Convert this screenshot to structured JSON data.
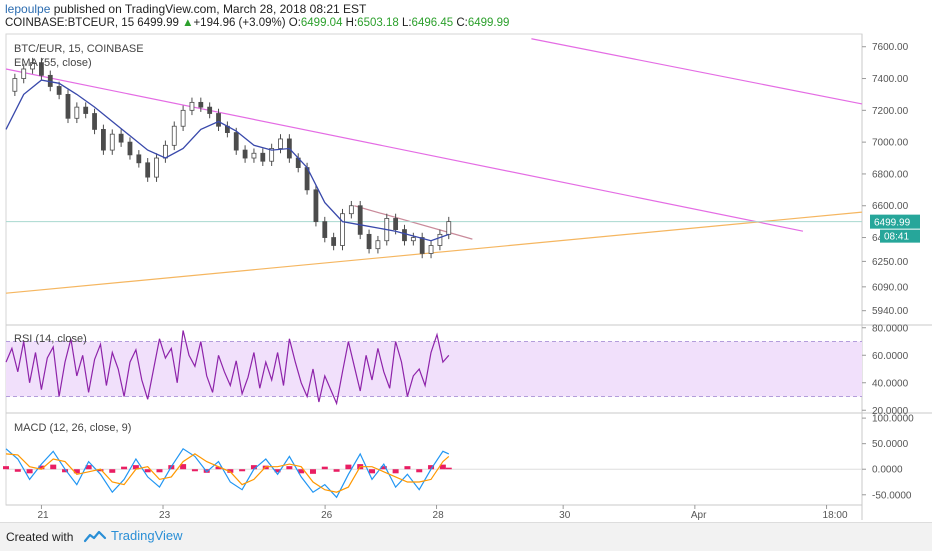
{
  "header": {
    "author": "lepoulpe",
    "published_text": "published on TradingView.com, March 28, 2018 08:21 EST",
    "symbol": "COINBASE:BTCEUR, 15",
    "last": "6499.99",
    "change_arrow": "▲",
    "change": "+194.96 (+3.09%)",
    "o_label": "O:",
    "o_value": "6499.04",
    "h_label": "H:",
    "h_value": "6503.18",
    "l_label": "L:",
    "l_value": "6496.45",
    "c_label": "C:",
    "c_value": "6499.99"
  },
  "footer": {
    "created_with": "Created with",
    "logo_text": "TradingView"
  },
  "colors": {
    "ema": "#3949ab",
    "rsi": "#8e24aa",
    "rsi_band": "#f1e0fb",
    "macd_line": "#2196f3",
    "signal_line": "#ff9800",
    "hist": "#e91e63",
    "magenta_line": "#e46ce4",
    "orange_line": "#f5b660",
    "rose_line": "#c98a9a",
    "price_green": "#26a69a",
    "candle_up": "#4c4c4c",
    "candle_down": "#4c4c4c"
  },
  "chart_data": [
    {
      "type": "line",
      "title": "BTC/EUR, 15, COINBASE",
      "subtitle": "EMA (55, close)",
      "x_ticks": [
        "21",
        "23",
        "26",
        "28",
        "30",
        "Apr",
        "18:00"
      ],
      "y_ticks": [
        "5940.00",
        "6090.00",
        "6250.00",
        "6400.00",
        "6600.00",
        "6800.00",
        "7000.00",
        "7200.00",
        "7400.00",
        "7600.00"
      ],
      "ylim": [
        5850,
        7680
      ],
      "xlim": [
        0,
        14.5
      ],
      "price_label": "6499.99",
      "countdown_label": "08:41",
      "close_series": [
        [
          0.0,
          7320
        ],
        [
          0.15,
          7400
        ],
        [
          0.3,
          7460
        ],
        [
          0.45,
          7500
        ],
        [
          0.6,
          7420
        ],
        [
          0.75,
          7350
        ],
        [
          0.9,
          7300
        ],
        [
          1.05,
          7150
        ],
        [
          1.2,
          7220
        ],
        [
          1.35,
          7180
        ],
        [
          1.5,
          7080
        ],
        [
          1.65,
          6950
        ],
        [
          1.8,
          7050
        ],
        [
          1.95,
          7000
        ],
        [
          2.1,
          6920
        ],
        [
          2.25,
          6870
        ],
        [
          2.4,
          6780
        ],
        [
          2.55,
          6900
        ],
        [
          2.7,
          6980
        ],
        [
          2.85,
          7100
        ],
        [
          3.0,
          7200
        ],
        [
          3.15,
          7250
        ],
        [
          3.3,
          7220
        ],
        [
          3.45,
          7180
        ],
        [
          3.6,
          7100
        ],
        [
          3.75,
          7060
        ],
        [
          3.9,
          6950
        ],
        [
          4.05,
          6900
        ],
        [
          4.2,
          6930
        ],
        [
          4.35,
          6880
        ],
        [
          4.5,
          6960
        ],
        [
          4.65,
          7020
        ],
        [
          4.8,
          6900
        ],
        [
          4.95,
          6840
        ],
        [
          5.1,
          6700
        ],
        [
          5.25,
          6500
        ],
        [
          5.4,
          6400
        ],
        [
          5.55,
          6350
        ],
        [
          5.7,
          6550
        ],
        [
          5.85,
          6600
        ],
        [
          6.0,
          6420
        ],
        [
          6.15,
          6330
        ],
        [
          6.3,
          6380
        ],
        [
          6.45,
          6520
        ],
        [
          6.6,
          6450
        ],
        [
          6.75,
          6380
        ],
        [
          6.9,
          6400
        ],
        [
          7.05,
          6300
        ],
        [
          7.2,
          6350
        ],
        [
          7.35,
          6420
        ],
        [
          7.5,
          6500
        ]
      ],
      "ema_series": [
        [
          0.0,
          7080
        ],
        [
          0.3,
          7300
        ],
        [
          0.6,
          7390
        ],
        [
          0.9,
          7370
        ],
        [
          1.2,
          7300
        ],
        [
          1.5,
          7220
        ],
        [
          1.8,
          7130
        ],
        [
          2.1,
          7040
        ],
        [
          2.4,
          6950
        ],
        [
          2.7,
          6900
        ],
        [
          3.0,
          6960
        ],
        [
          3.3,
          7080
        ],
        [
          3.6,
          7130
        ],
        [
          3.9,
          7070
        ],
        [
          4.2,
          6980
        ],
        [
          4.5,
          6950
        ],
        [
          4.8,
          6960
        ],
        [
          5.1,
          6840
        ],
        [
          5.4,
          6620
        ],
        [
          5.7,
          6500
        ],
        [
          6.0,
          6480
        ],
        [
          6.3,
          6460
        ],
        [
          6.6,
          6440
        ],
        [
          6.9,
          6410
        ],
        [
          7.2,
          6380
        ],
        [
          7.5,
          6420
        ]
      ],
      "trendlines": [
        {
          "name": "upper-channel",
          "from": [
            8.9,
            7650
          ],
          "to": [
            14.5,
            7240
          ]
        },
        {
          "name": "mid-resistance",
          "from": [
            0.0,
            7460
          ],
          "to": [
            13.5,
            6440
          ]
        },
        {
          "name": "short-resistance",
          "from": [
            5.9,
            6600
          ],
          "to": [
            7.9,
            6390
          ]
        },
        {
          "name": "support",
          "from": [
            0.0,
            6050
          ],
          "to": [
            14.5,
            6560
          ]
        }
      ]
    },
    {
      "type": "line",
      "title": "RSI (14, close)",
      "y_ticks": [
        "20.0000",
        "40.0000",
        "60.0000",
        "80.0000"
      ],
      "ylim": [
        18,
        82
      ],
      "band": [
        30,
        70
      ],
      "series": [
        {
          "values": [
            [
              0.0,
              55
            ],
            [
              0.1,
              65
            ],
            [
              0.2,
              48
            ],
            [
              0.3,
              70
            ],
            [
              0.4,
              40
            ],
            [
              0.5,
              62
            ],
            [
              0.6,
              35
            ],
            [
              0.7,
              58
            ],
            [
              0.8,
              66
            ],
            [
              0.9,
              30
            ],
            [
              1.0,
              55
            ],
            [
              1.1,
              72
            ],
            [
              1.2,
              45
            ],
            [
              1.3,
              60
            ],
            [
              1.4,
              33
            ],
            [
              1.5,
              57
            ],
            [
              1.6,
              68
            ],
            [
              1.7,
              38
            ],
            [
              1.8,
              62
            ],
            [
              1.9,
              50
            ],
            [
              2.0,
              30
            ],
            [
              2.1,
              55
            ],
            [
              2.2,
              64
            ],
            [
              2.3,
              42
            ],
            [
              2.4,
              28
            ],
            [
              2.5,
              50
            ],
            [
              2.6,
              72
            ],
            [
              2.7,
              58
            ],
            [
              2.8,
              65
            ],
            [
              2.9,
              40
            ],
            [
              3.0,
              78
            ],
            [
              3.1,
              60
            ],
            [
              3.2,
              52
            ],
            [
              3.3,
              70
            ],
            [
              3.4,
              45
            ],
            [
              3.5,
              33
            ],
            [
              3.6,
              60
            ],
            [
              3.7,
              48
            ],
            [
              3.8,
              38
            ],
            [
              3.9,
              56
            ],
            [
              4.0,
              32
            ],
            [
              4.1,
              44
            ],
            [
              4.2,
              62
            ],
            [
              4.3,
              36
            ],
            [
              4.4,
              55
            ],
            [
              4.5,
              42
            ],
            [
              4.6,
              62
            ],
            [
              4.7,
              38
            ],
            [
              4.8,
              72
            ],
            [
              4.9,
              55
            ],
            [
              5.0,
              40
            ],
            [
              5.1,
              30
            ],
            [
              5.2,
              50
            ],
            [
              5.3,
              26
            ],
            [
              5.4,
              45
            ],
            [
              5.5,
              35
            ],
            [
              5.6,
              25
            ],
            [
              5.7,
              48
            ],
            [
              5.8,
              70
            ],
            [
              5.9,
              52
            ],
            [
              6.0,
              34
            ],
            [
              6.1,
              60
            ],
            [
              6.2,
              42
            ],
            [
              6.3,
              65
            ],
            [
              6.4,
              48
            ],
            [
              6.5,
              36
            ],
            [
              6.6,
              70
            ],
            [
              6.7,
              55
            ],
            [
              6.8,
              30
            ],
            [
              6.9,
              45
            ],
            [
              7.0,
              50
            ],
            [
              7.1,
              38
            ],
            [
              7.2,
              62
            ],
            [
              7.3,
              75
            ],
            [
              7.4,
              55
            ],
            [
              7.5,
              60
            ]
          ]
        }
      ]
    },
    {
      "type": "line",
      "title": "MACD (12, 26, close, 9)",
      "y_ticks": [
        "-50.0000",
        "0.0000",
        "50.0000",
        "100.0000"
      ],
      "ylim": [
        -70,
        110
      ],
      "series": [
        {
          "values": [
            [
              0.0,
              40
            ],
            [
              0.2,
              20
            ],
            [
              0.4,
              -20
            ],
            [
              0.6,
              10
            ],
            [
              0.8,
              35
            ],
            [
              1.0,
              0
            ],
            [
              1.2,
              -30
            ],
            [
              1.4,
              15
            ],
            [
              1.6,
              -10
            ],
            [
              1.8,
              -45
            ],
            [
              2.0,
              -20
            ],
            [
              2.2,
              20
            ],
            [
              2.4,
              -15
            ],
            [
              2.6,
              -35
            ],
            [
              2.8,
              5
            ],
            [
              3.0,
              40
            ],
            [
              3.2,
              25
            ],
            [
              3.4,
              -5
            ],
            [
              3.6,
              15
            ],
            [
              3.8,
              -25
            ],
            [
              4.0,
              -40
            ],
            [
              4.2,
              0
            ],
            [
              4.4,
              20
            ],
            [
              4.6,
              -10
            ],
            [
              4.8,
              25
            ],
            [
              5.0,
              -15
            ],
            [
              5.2,
              -45
            ],
            [
              5.4,
              -30
            ],
            [
              5.6,
              -55
            ],
            [
              5.8,
              -10
            ],
            [
              6.0,
              30
            ],
            [
              6.2,
              -20
            ],
            [
              6.4,
              10
            ],
            [
              6.6,
              -35
            ],
            [
              6.8,
              -10
            ],
            [
              7.0,
              -40
            ],
            [
              7.2,
              0
            ],
            [
              7.4,
              35
            ],
            [
              7.5,
              30
            ]
          ]
        },
        {
          "values": [
            [
              0.0,
              30
            ],
            [
              0.2,
              28
            ],
            [
              0.4,
              5
            ],
            [
              0.6,
              0
            ],
            [
              0.8,
              20
            ],
            [
              1.0,
              15
            ],
            [
              1.2,
              -10
            ],
            [
              1.4,
              -5
            ],
            [
              1.6,
              0
            ],
            [
              1.8,
              -25
            ],
            [
              2.0,
              -30
            ],
            [
              2.2,
              0
            ],
            [
              2.4,
              5
            ],
            [
              2.6,
              -20
            ],
            [
              2.8,
              -15
            ],
            [
              3.0,
              15
            ],
            [
              3.2,
              30
            ],
            [
              3.4,
              15
            ],
            [
              3.6,
              5
            ],
            [
              3.8,
              -5
            ],
            [
              4.0,
              -30
            ],
            [
              4.2,
              -20
            ],
            [
              4.4,
              5
            ],
            [
              4.6,
              5
            ],
            [
              4.8,
              10
            ],
            [
              5.0,
              5
            ],
            [
              5.2,
              -25
            ],
            [
              5.4,
              -40
            ],
            [
              5.6,
              -45
            ],
            [
              5.8,
              -35
            ],
            [
              6.0,
              5
            ],
            [
              6.2,
              5
            ],
            [
              6.4,
              -5
            ],
            [
              6.6,
              -15
            ],
            [
              6.8,
              -25
            ],
            [
              7.0,
              -25
            ],
            [
              7.2,
              -20
            ],
            [
              7.4,
              15
            ],
            [
              7.5,
              25
            ]
          ]
        },
        {
          "values": [
            [
              0.0,
              6
            ],
            [
              0.2,
              -5
            ],
            [
              0.4,
              -8
            ],
            [
              0.6,
              7
            ],
            [
              0.8,
              9
            ],
            [
              1.0,
              -6
            ],
            [
              1.2,
              -8
            ],
            [
              1.4,
              8
            ],
            [
              1.6,
              -4
            ],
            [
              1.8,
              -7
            ],
            [
              2.0,
              5
            ],
            [
              2.2,
              8
            ],
            [
              2.4,
              -6
            ],
            [
              2.6,
              -6
            ],
            [
              2.8,
              8
            ],
            [
              3.0,
              10
            ],
            [
              3.2,
              -4
            ],
            [
              3.4,
              -7
            ],
            [
              3.6,
              5
            ],
            [
              3.8,
              -7
            ],
            [
              4.0,
              -4
            ],
            [
              4.2,
              8
            ],
            [
              4.4,
              7
            ],
            [
              4.6,
              -6
            ],
            [
              4.8,
              6
            ],
            [
              5.0,
              -8
            ],
            [
              5.2,
              -9
            ],
            [
              5.4,
              5
            ],
            [
              5.6,
              -5
            ],
            [
              5.8,
              9
            ],
            [
              6.0,
              10
            ],
            [
              6.2,
              -8
            ],
            [
              6.4,
              6
            ],
            [
              6.6,
              -8
            ],
            [
              6.8,
              6
            ],
            [
              7.0,
              -6
            ],
            [
              7.2,
              8
            ],
            [
              7.4,
              9
            ],
            [
              7.5,
              3
            ]
          ]
        }
      ]
    }
  ]
}
